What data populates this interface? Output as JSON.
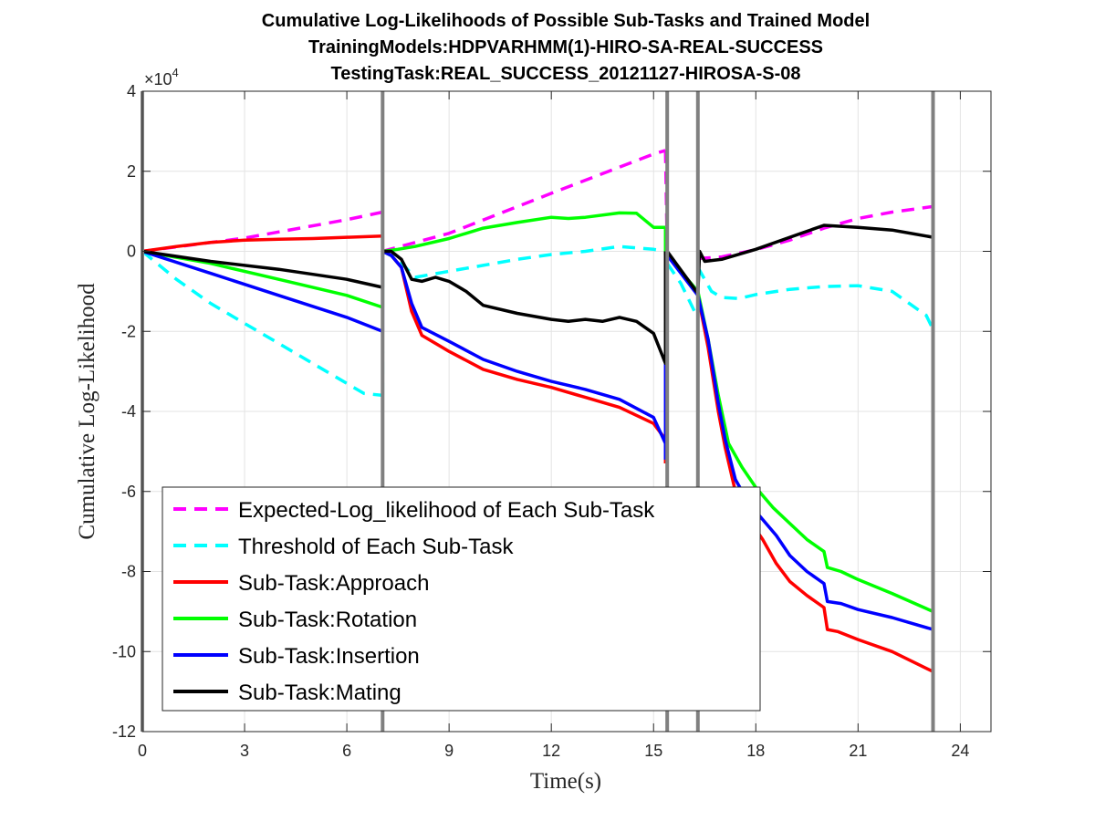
{
  "chart_data": {
    "type": "line",
    "title": [
      "Cumulative Log-Likelihoods of Possible Sub-Tasks and Trained Model",
      "TrainingModels:HDPVARHMM(1)-HIRO-SA-REAL-SUCCESS",
      "TestingTask:REAL_SUCCESS_20121127-HIROSA-S-08"
    ],
    "xlabel": "Time(s)",
    "ylabel": "Cumulative Log-Likelihood",
    "y_exponent": {
      "base": "×10",
      "power": "4"
    },
    "xlim": [
      0,
      24.9
    ],
    "ylim": [
      -12,
      4
    ],
    "xticks": [
      0,
      3,
      6,
      9,
      12,
      15,
      18,
      21,
      24
    ],
    "yticks": [
      -12,
      -10,
      -8,
      -6,
      -4,
      -2,
      0,
      2,
      4
    ],
    "grid": true,
    "legend_position": "bottom-left",
    "vertical_lines": [
      0,
      7.05,
      15.4,
      16.3,
      23.2
    ],
    "series": [
      {
        "name": "Expected-Log_likelihood of Each Sub-Task",
        "color": "#ff00ff",
        "style": "dashed",
        "segments": [
          {
            "x": [
              0,
              3,
              6,
              7.05
            ],
            "y": [
              0,
              3.3,
              7.9,
              9.8
            ]
          },
          {
            "x": [
              7.05,
              9,
              12,
              15,
              15.35
            ],
            "y": [
              0,
              4.5,
              14.5,
              24.3,
              25.2
            ]
          },
          {
            "x": [
              15.35,
              15.4
            ],
            "y": [
              25.2,
              0
            ]
          },
          {
            "x": [
              16.3,
              17,
              18,
              19,
              20,
              21,
              22,
              23.2
            ],
            "y": [
              -1.8,
              -1.4,
              0.4,
              2.8,
              5.8,
              8.2,
              9.8,
              11.2
            ]
          }
        ]
      },
      {
        "name": "Threshold of Each Sub-Task",
        "color": "#00ffff",
        "style": "dashed",
        "segments": [
          {
            "x": [
              0,
              1,
              2,
              3,
              4,
              5,
              6,
              6.5,
              7.05
            ],
            "y": [
              0,
              -7,
              -13,
              -18,
              -23,
              -28,
              -33,
              -35.5,
              -36
            ]
          },
          {
            "x": [
              7.05,
              7.05
            ],
            "y": [
              -36,
              -25
            ]
          },
          {
            "x": [
              7.05,
              7.5,
              8,
              9,
              10,
              11,
              12,
              13,
              14,
              15,
              15.35
            ],
            "y": [
              0,
              -2,
              -6.5,
              -5,
              -3.5,
              -2,
              -0.8,
              0,
              1.2,
              0.5,
              0
            ]
          },
          {
            "x": [
              15.4,
              15.8,
              16.2
            ],
            "y": [
              -3,
              -8,
              -15
            ]
          },
          {
            "x": [
              16.3,
              16.7,
              17,
              17.5,
              18,
              19,
              20,
              21,
              22,
              23,
              23.2
            ],
            "y": [
              -4,
              -10,
              -11.5,
              -11.8,
              -10.8,
              -9.5,
              -8.8,
              -8.6,
              -10,
              -16,
              -19.5
            ]
          }
        ]
      },
      {
        "name": "Sub-Task:Approach",
        "color": "#ff0000",
        "style": "solid",
        "segments": [
          {
            "x": [
              0,
              1,
              2,
              3,
              4,
              5,
              6,
              7.05
            ],
            "y": [
              0,
              1.2,
              2.2,
              2.8,
              3.0,
              3.2,
              3.5,
              3.8
            ]
          },
          {
            "x": [
              7.05,
              7.05,
              7.3,
              7.6,
              7.9,
              8.2,
              9,
              10,
              11,
              12,
              13,
              14,
              15,
              15.35,
              15.35
            ],
            "y": [
              3.8,
              0,
              -1,
              -4,
              -15,
              -21,
              -25,
              -29.5,
              -32,
              -34,
              -36.5,
              -39,
              -43,
              -47,
              -53
            ]
          },
          {
            "x": [
              16.3,
              16.6,
              16.9,
              17.1,
              17.4,
              17.8,
              18.2,
              18.6,
              19,
              19.5,
              20,
              20.1,
              20.4,
              21,
              22,
              23.2
            ],
            "y": [
              -11,
              -24,
              -40,
              -49,
              -60,
              -67,
              -72,
              -78,
              -82.5,
              -86,
              -89,
              -94.5,
              -95,
              -97,
              -100,
              -105
            ]
          }
        ]
      },
      {
        "name": "Sub-Task:Rotation",
        "color": "#00ff00",
        "style": "solid",
        "segments": [
          {
            "x": [
              0,
              2,
              4,
              6,
              7.05
            ],
            "y": [
              0,
              -3,
              -7,
              -11,
              -14
            ]
          },
          {
            "x": [
              7.05,
              7.05,
              7.5,
              8,
              9,
              10,
              11,
              12,
              12.5,
              13,
              14,
              14.5,
              15,
              15.35
            ],
            "y": [
              -14,
              0,
              0.5,
              1.2,
              3.2,
              5.8,
              7.2,
              8.5,
              8.2,
              8.5,
              9.6,
              9.5,
              6,
              6
            ]
          },
          {
            "x": [
              15.35,
              15.35
            ],
            "y": [
              6,
              -1
            ]
          },
          {
            "x": [
              15.4,
              16.3,
              16.6,
              16.9,
              17.2,
              17.6,
              18,
              18.5,
              19,
              19.5,
              20,
              20.1,
              20.5,
              21,
              22,
              23.2
            ],
            "y": [
              -1,
              -10,
              -22,
              -36,
              -48,
              -54,
              -59,
              -64,
              -68,
              -72,
              -75,
              -79,
              -80,
              -82,
              -85.5,
              -90
            ]
          }
        ]
      },
      {
        "name": "Sub-Task:Insertion",
        "color": "#0000ff",
        "style": "solid",
        "segments": [
          {
            "x": [
              0,
              2,
              4,
              6,
              7.05
            ],
            "y": [
              0,
              -5.5,
              -11,
              -16.5,
              -20
            ]
          },
          {
            "x": [
              7.05,
              7.05,
              7.3,
              7.6,
              7.9,
              8.2,
              9,
              10,
              11,
              12,
              13,
              14,
              15,
              15.35,
              15.35
            ],
            "y": [
              -20,
              0,
              -1,
              -4,
              -13,
              -19,
              -22.5,
              -27,
              -30,
              -32.5,
              -34.5,
              -37,
              -41.5,
              -48,
              -52
            ]
          },
          {
            "x": [
              15.35,
              15.35
            ],
            "y": [
              -52,
              -28
            ]
          },
          {
            "x": [
              15.4,
              16.3,
              16.6,
              16.9,
              17.1,
              17.4,
              17.8,
              18.2,
              18.6,
              19,
              19.5,
              20,
              20.1,
              20.5,
              21,
              22,
              23.2
            ],
            "y": [
              -1,
              -11,
              -22,
              -38,
              -47,
              -57,
              -63,
              -67,
              -71,
              -76,
              -80,
              -83,
              -87.5,
              -88,
              -89.5,
              -91.5,
              -94.5
            ]
          }
        ]
      },
      {
        "name": "Sub-Task:Mating",
        "color": "#000000",
        "style": "solid",
        "segments": [
          {
            "x": [
              0,
              2,
              4,
              6,
              7.05
            ],
            "y": [
              0,
              -2.5,
              -4.5,
              -7,
              -9
            ]
          },
          {
            "x": [
              7.05,
              7.05,
              7.3,
              7.6,
              7.9,
              8.2,
              8.6,
              9,
              9.5,
              10,
              11,
              12,
              12.5,
              13,
              13.5,
              14,
              14.5,
              15,
              15.35,
              15.35
            ],
            "y": [
              -9,
              0,
              0,
              -2,
              -7,
              -7.5,
              -6.5,
              -7.5,
              -10,
              -13.5,
              -15.5,
              -17,
              -17.5,
              -17,
              -17.5,
              -16.5,
              -17.5,
              -20.5,
              -28,
              0
            ]
          },
          {
            "x": [
              15.4,
              16.3,
              16.35,
              16.5,
              17,
              18,
              19,
              20,
              21,
              22,
              23.2
            ],
            "y": [
              0,
              -10.5,
              0,
              -2.5,
              -2,
              0.5,
              3.5,
              6.5,
              6,
              5.3,
              3.5
            ]
          }
        ]
      }
    ]
  }
}
